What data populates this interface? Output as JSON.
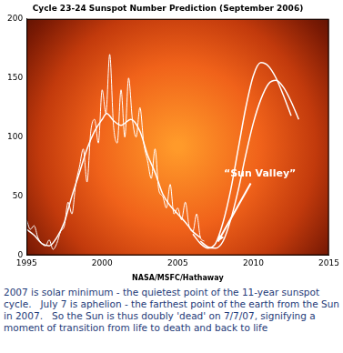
{
  "chart_data": {
    "type": "line",
    "title": "Cycle 23-24 Sunspot Number Prediction (September 2006)",
    "source": "NASA/MSFC/Hathaway",
    "xlim": [
      1995,
      2015
    ],
    "xticks": [
      1995,
      2000,
      2005,
      2010,
      2015
    ],
    "ylim": [
      0,
      200
    ],
    "yticks": [
      0,
      50,
      100,
      150,
      200
    ],
    "grid": false,
    "annotations": [
      {
        "text": "“Sun Valley”",
        "x": 2007.3,
        "y": 7
      }
    ],
    "series": [
      {
        "color": "#ffffff",
        "x": [
          1995.0,
          1995.25,
          1995.5,
          1995.75,
          1996.0,
          1996.25,
          1996.5,
          1996.75,
          1997.0,
          1997.25,
          1997.5,
          1997.75,
          1998.0,
          1998.25,
          1998.5,
          1998.75,
          1999.0,
          1999.25,
          1999.5,
          1999.75,
          2000.0,
          2000.25,
          2000.5,
          2000.75,
          2001.0,
          2001.25,
          2001.5,
          2001.75,
          2002.0,
          2002.25,
          2002.5,
          2002.75,
          2003.0,
          2003.25,
          2003.5,
          2003.75,
          2004.0,
          2004.25,
          2004.5,
          2004.75,
          2005.0,
          2005.25,
          2005.5,
          2005.75,
          2006.0,
          2006.25,
          2006.5,
          2006.75
        ],
        "values": [
          30,
          22,
          25,
          15,
          10,
          8,
          13,
          5,
          10,
          20,
          25,
          45,
          35,
          60,
          75,
          90,
          62,
          105,
          115,
          95,
          140,
          120,
          170,
          110,
          95,
          140,
          100,
          150,
          115,
          100,
          125,
          95,
          80,
          65,
          90,
          55,
          50,
          40,
          60,
          35,
          40,
          30,
          45,
          25,
          20,
          35,
          15,
          12
        ]
      },
      {
        "color": "#ffffff",
        "x": [
          1995.0,
          1995.5,
          1996.0,
          1996.5,
          1997.0,
          1997.5,
          1998.0,
          1998.5,
          1999.0,
          1999.5,
          2000.0,
          2000.3,
          2000.75,
          2001.25,
          2001.9,
          2002.5,
          2003.0,
          2003.5,
          2004.0,
          2004.5,
          2005.0,
          2005.5,
          2006.0,
          2006.5
        ],
        "values": [
          22,
          17,
          10,
          8,
          15,
          28,
          50,
          70,
          90,
          105,
          115,
          120,
          114,
          110,
          115,
          105,
          85,
          70,
          52,
          42,
          35,
          28,
          20,
          15
        ]
      },
      {
        "color": "#ffffff",
        "x": [
          2006.0,
          2006.5,
          2007.0,
          2007.5,
          2008.0,
          2008.5,
          2009.0,
          2009.5,
          2010.0,
          2010.5,
          2011.0,
          2011.5,
          2012.0,
          2012.5
        ],
        "values": [
          18,
          10,
          6,
          10,
          28,
          55,
          90,
          125,
          152,
          163,
          160,
          150,
          135,
          118
        ]
      },
      {
        "color": "#ffffff",
        "x": [
          2006.5,
          2007.0,
          2007.5,
          2008.0,
          2008.5,
          2009.0,
          2009.5,
          2010.0,
          2010.5,
          2011.0,
          2011.5,
          2012.0,
          2012.5,
          2013.0
        ],
        "values": [
          12,
          7,
          6,
          12,
          30,
          55,
          85,
          112,
          132,
          145,
          148,
          142,
          130,
          115
        ]
      }
    ]
  },
  "caption": "2007 is solar minimum - the quietest point of the 11-year sunspot cycle.   July 7 is aphelion - the farthest point of the earth from the Sun in 2007.   So the Sun is thus doubly 'dead' on 7/7/07, signifying a moment of transition from life to death and back to life"
}
